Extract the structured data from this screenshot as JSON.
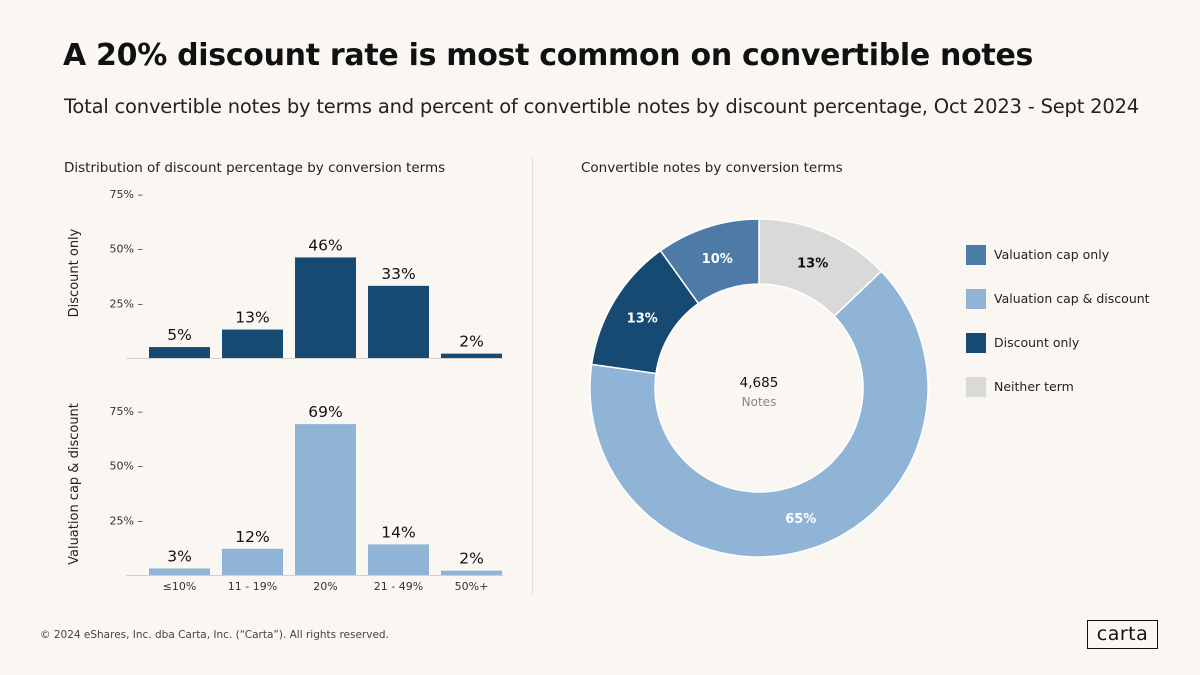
{
  "header": {
    "title": "A 20% discount rate is most common on convertible notes",
    "subtitle": "Total convertible notes by terms and percent of convertible notes by discount percentage, Oct 2023 - Sept 2024"
  },
  "left_panel": {
    "title": "Distribution of discount percentage by conversion terms"
  },
  "right_panel": {
    "title": "Convertible notes by conversion terms"
  },
  "colors": {
    "valuation_cap_only": "#4e7aa8",
    "valuation_cap_discount": "#8fb4d6",
    "discount_only": "#164a72",
    "neither_term": "#d9d9d9"
  },
  "chart_data": [
    {
      "type": "bar",
      "title": "Distribution of discount percentage by conversion terms",
      "categories": [
        "≤10%",
        "11 - 19%",
        "20%",
        "21 - 49%",
        "50%+"
      ],
      "ylim": [
        0,
        75
      ],
      "yticks": [
        "25% –",
        "50% –",
        "75% –"
      ],
      "series": [
        {
          "name": "Discount only",
          "values": [
            5,
            13,
            46,
            33,
            2
          ],
          "labels": [
            "5%",
            "13%",
            "46%",
            "33%",
            "2%"
          ],
          "color": "#164a72"
        },
        {
          "name": "Valuation cap & discount",
          "values": [
            3,
            12,
            69,
            14,
            2
          ],
          "labels": [
            "3%",
            "12%",
            "69%",
            "14%",
            "2%"
          ],
          "color": "#8fb4d6"
        }
      ]
    },
    {
      "type": "pie",
      "title": "Convertible notes by conversion terms",
      "center_value": "4,685",
      "center_label": "Notes",
      "slices": [
        {
          "name": "Valuation cap only",
          "value": 10,
          "label": "10%",
          "color": "#4e7aa8"
        },
        {
          "name": "Valuation cap & discount",
          "value": 65,
          "label": "65%",
          "color": "#8fb4d6"
        },
        {
          "name": "Discount only",
          "value": 13,
          "label": "13%",
          "color": "#164a72"
        },
        {
          "name": "Neither term",
          "value": 13,
          "label": "13%",
          "color": "#d9d9d9"
        }
      ]
    }
  ],
  "footer": {
    "copyright": "© 2024 eShares, Inc. dba Carta, Inc. (“Carta”). All rights reserved."
  },
  "logo": {
    "text": "carta"
  }
}
